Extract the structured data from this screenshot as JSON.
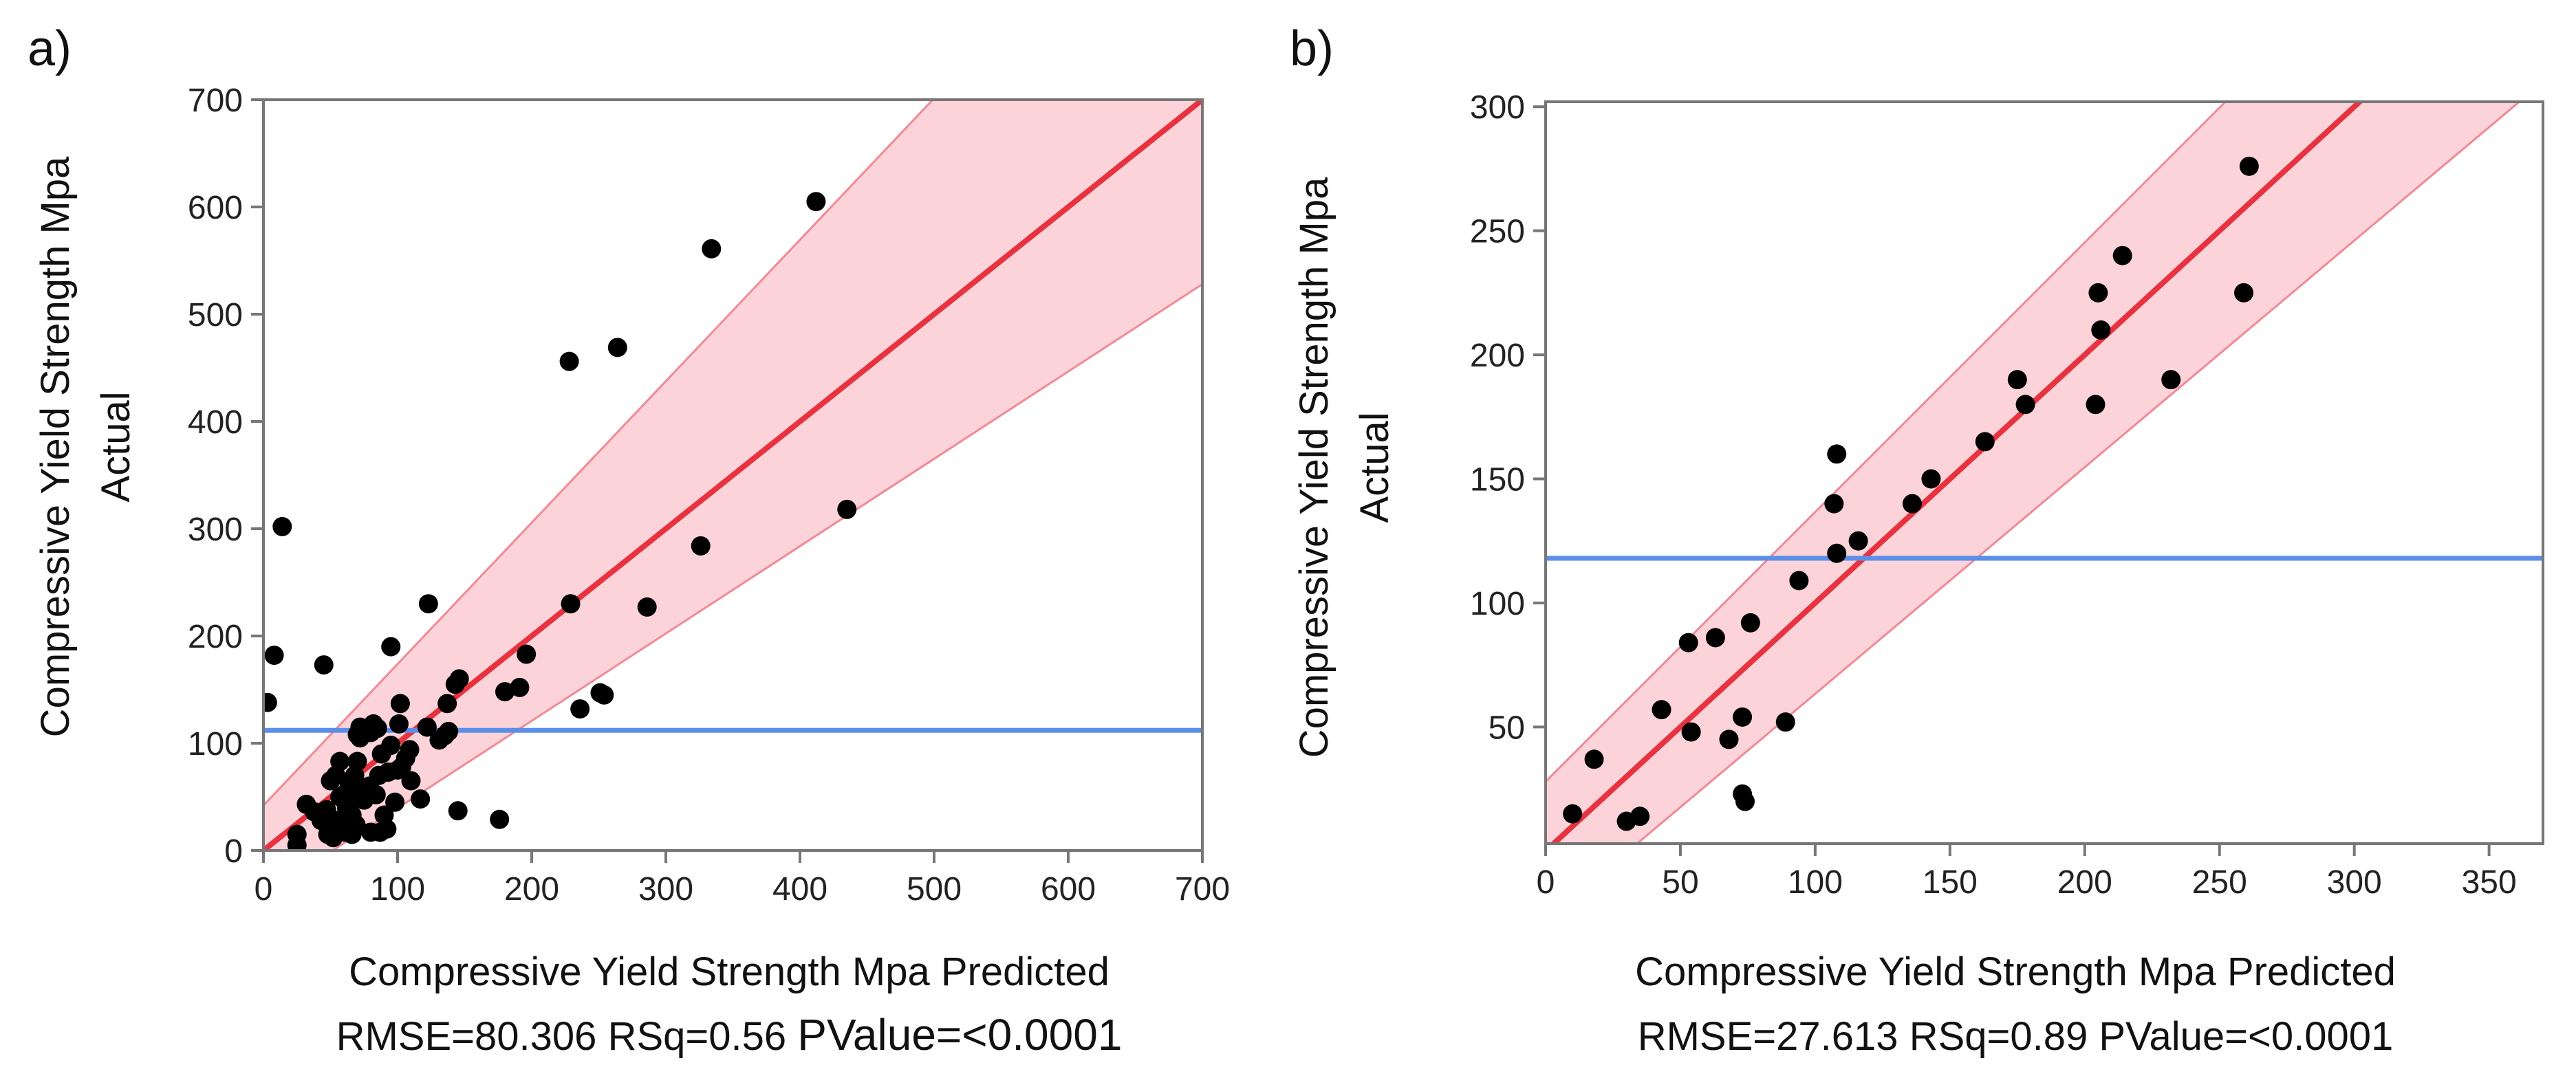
{
  "chart_data": [
    {
      "panel": "a)",
      "type": "scatter",
      "xlabel": "Compressive Yield Strength Mpa Predicted",
      "ylabel_line1": "Compressive Yield Strength Mpa",
      "ylabel_line2": "Actual",
      "xlim": [
        0,
        700
      ],
      "ylim": [
        0,
        700
      ],
      "xticks": [
        0,
        100,
        200,
        300,
        400,
        500,
        600,
        700
      ],
      "yticks": [
        0,
        100,
        200,
        300,
        400,
        500,
        600,
        700
      ],
      "mean_line": 112,
      "fit_line": {
        "from": [
          0,
          0
        ],
        "to": [
          700,
          700
        ]
      },
      "confidence_band": {
        "x": [
          0,
          700
        ],
        "upper": [
          42,
          965
        ],
        "lower": [
          -42,
          528
        ]
      },
      "stats": {
        "rmse": "RMSE=80.306",
        "rsq": "RSq=0.56",
        "pvalue": "PValue=<0.0001"
      },
      "colors": {
        "points": "#000000",
        "fit": "#e8323f",
        "band": "#fbd3d8",
        "band_edge": "#f08a95",
        "mean": "#5b8fe8",
        "frame": "#777777"
      },
      "points": [
        [
          3,
          138
        ],
        [
          8,
          182
        ],
        [
          14,
          302
        ],
        [
          45,
          173
        ],
        [
          95,
          190
        ],
        [
          123,
          230
        ],
        [
          228,
          456
        ],
        [
          264,
          469
        ],
        [
          334,
          561
        ],
        [
          412,
          605
        ],
        [
          435,
          318
        ],
        [
          326,
          284
        ],
        [
          286,
          227
        ],
        [
          229,
          230
        ],
        [
          196,
          183
        ],
        [
          146,
          160
        ],
        [
          143,
          155
        ],
        [
          137,
          137
        ],
        [
          180,
          148
        ],
        [
          191,
          152
        ],
        [
          236,
          132
        ],
        [
          251,
          147
        ],
        [
          254,
          145
        ],
        [
          145,
          37
        ],
        [
          176,
          29
        ],
        [
          117,
          48
        ],
        [
          135,
          107
        ],
        [
          138,
          111
        ],
        [
          122,
          115
        ],
        [
          131,
          103
        ],
        [
          109,
          94
        ],
        [
          101,
          118
        ],
        [
          102,
          137
        ],
        [
          25,
          15
        ],
        [
          25,
          5
        ],
        [
          32,
          43
        ],
        [
          38,
          36
        ],
        [
          43,
          28
        ],
        [
          47,
          38
        ],
        [
          50,
          22
        ],
        [
          52,
          12
        ],
        [
          55,
          28
        ],
        [
          57,
          50
        ],
        [
          50,
          65
        ],
        [
          54,
          70
        ],
        [
          57,
          83
        ],
        [
          60,
          52
        ],
        [
          62,
          40
        ],
        [
          64,
          45
        ],
        [
          66,
          33
        ],
        [
          67,
          60
        ],
        [
          68,
          70
        ],
        [
          70,
          83
        ],
        [
          70,
          108
        ],
        [
          72,
          115
        ],
        [
          75,
          47
        ],
        [
          77,
          55
        ],
        [
          79,
          60
        ],
        [
          80,
          110
        ],
        [
          82,
          118
        ],
        [
          85,
          114
        ],
        [
          86,
          70
        ],
        [
          88,
          90
        ],
        [
          90,
          33
        ],
        [
          92,
          20
        ],
        [
          93,
          73
        ],
        [
          95,
          98
        ],
        [
          98,
          45
        ],
        [
          100,
          75
        ],
        [
          103,
          78
        ],
        [
          106,
          86
        ],
        [
          110,
          65
        ],
        [
          80,
          17
        ],
        [
          84,
          52
        ],
        [
          61,
          17
        ],
        [
          58,
          23
        ],
        [
          66,
          15
        ],
        [
          72,
          105
        ],
        [
          87,
          17
        ],
        [
          48,
          15
        ],
        [
          69,
          24
        ],
        [
          64,
          60
        ]
      ]
    },
    {
      "panel": "b)",
      "type": "scatter",
      "xlabel": "Compressive Yield Strength Mpa Predicted",
      "ylabel_line1": "Compressive Yield Strength Mpa",
      "ylabel_line2": "Actual",
      "xlim": [
        0,
        370
      ],
      "ylim": [
        3,
        302
      ],
      "xticks": [
        0,
        50,
        100,
        150,
        200,
        250,
        300,
        350
      ],
      "yticks": [
        50,
        100,
        150,
        200,
        250,
        300
      ],
      "mean_line": 118,
      "fit_line": {
        "from": [
          0,
          0
        ],
        "to": [
          370,
          370
        ]
      },
      "confidence_band": {
        "x": [
          0,
          370
        ],
        "upper": [
          28,
          430
        ],
        "lower": [
          -28,
          310
        ]
      },
      "stats": {
        "rmse": "RMSE=27.613",
        "rsq": "RSq=0.89",
        "pvalue": "PValue=<0.0001"
      },
      "colors": {
        "points": "#000000",
        "fit": "#e8323f",
        "band": "#fbd3d8",
        "band_edge": "#f08a95",
        "mean": "#5b8fe8",
        "frame": "#777777"
      },
      "points": [
        [
          10,
          15
        ],
        [
          18,
          37
        ],
        [
          30,
          12
        ],
        [
          35,
          14
        ],
        [
          43,
          57
        ],
        [
          53,
          84
        ],
        [
          54,
          48
        ],
        [
          63,
          86
        ],
        [
          68,
          45
        ],
        [
          73,
          54
        ],
        [
          73,
          23
        ],
        [
          74,
          20
        ],
        [
          76,
          92
        ],
        [
          89,
          52
        ],
        [
          94,
          109
        ],
        [
          107,
          140
        ],
        [
          108,
          120
        ],
        [
          108,
          160
        ],
        [
          116,
          125
        ],
        [
          136,
          140
        ],
        [
          143,
          150
        ],
        [
          163,
          165
        ],
        [
          175,
          190
        ],
        [
          178,
          180
        ],
        [
          204,
          180
        ],
        [
          205,
          225
        ],
        [
          206,
          210
        ],
        [
          214,
          240
        ],
        [
          232,
          190
        ],
        [
          259,
          225
        ],
        [
          261,
          276
        ]
      ]
    }
  ]
}
